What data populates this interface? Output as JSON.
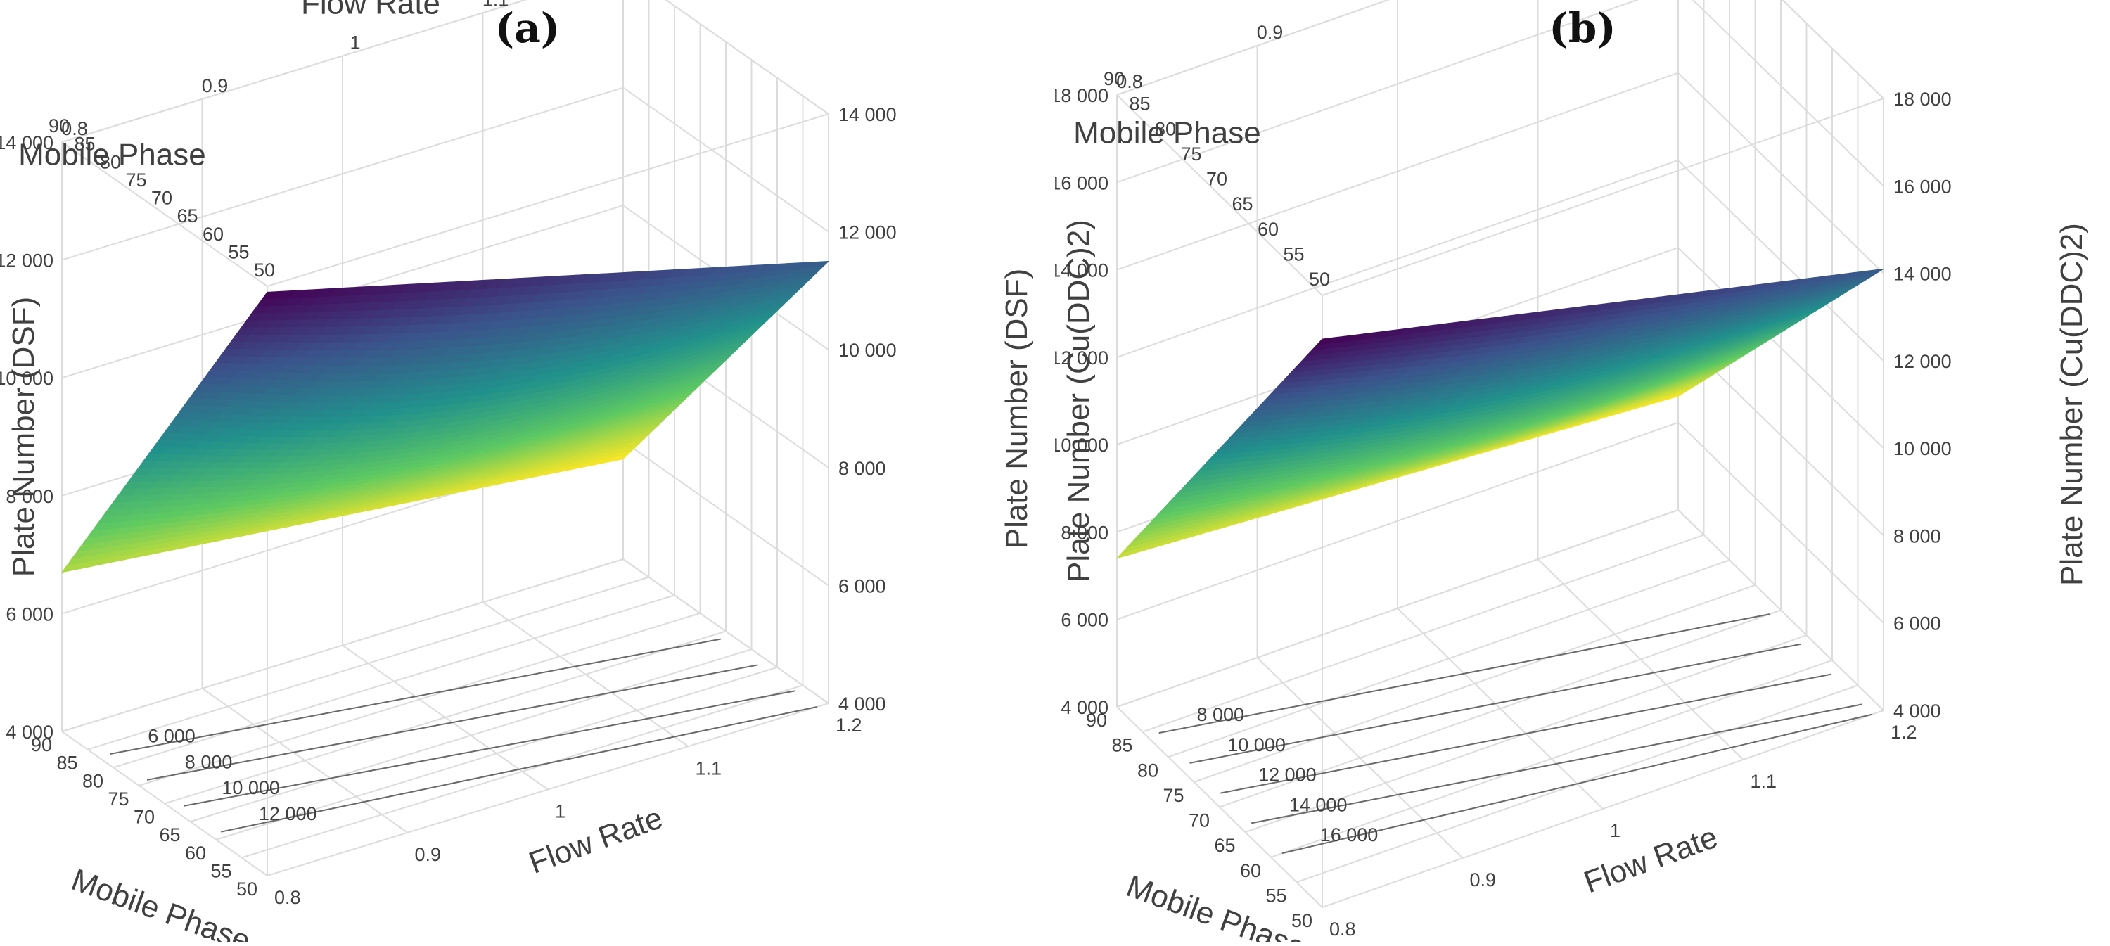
{
  "chart_data": [
    {
      "type": "surface",
      "panel_label": "(a)",
      "z_label": "Plate Number (DSF)",
      "x_label": "Mobile Phase",
      "y_label": "Flow Rate",
      "x_ticks": [
        "90",
        "85",
        "80",
        "75",
        "70",
        "65",
        "60",
        "55",
        "50"
      ],
      "y_ticks": [
        "0.8",
        "0.9",
        "1",
        "1.1",
        "1.2"
      ],
      "z_ticks_left": [
        "4 000",
        "6 000",
        "8 000",
        "10 000",
        "12 000",
        "14 000"
      ],
      "z_ticks_right": [
        "4 000",
        "6 000",
        "8 000",
        "10 000",
        "12 000",
        "14 000"
      ],
      "xlim": [
        50,
        90
      ],
      "ylim": [
        0.8,
        1.2
      ],
      "zlim": [
        4000,
        14000
      ],
      "surface_corners": {
        "mp90_fr0.8": 6700,
        "mp50_fr0.8": 13900,
        "mp50_fr1.2": 11500,
        "mp90_fr1.2": 5700
      },
      "colormap": "viridis-reversed",
      "contour_labels": [
        "6 000",
        "8 000",
        "10 000",
        "12 000"
      ]
    },
    {
      "type": "surface",
      "panel_label": "(b)",
      "z_label": "Plate Number (Cu(DDC)2)",
      "x_label": "Mobile Phase",
      "y_label": "Flow Rate",
      "x_ticks": [
        "90",
        "85",
        "80",
        "75",
        "70",
        "65",
        "60",
        "55",
        "50"
      ],
      "y_ticks": [
        "0.8",
        "0.9",
        "1",
        "1.1",
        "1.2"
      ],
      "z_ticks_left": [
        "4 000",
        "6 000",
        "8 000",
        "10 000",
        "12 000",
        "14 000",
        "16 000",
        "18 000"
      ],
      "z_ticks_right": [
        "4 000",
        "6 000",
        "8 000",
        "10 000",
        "12 000",
        "14 000",
        "16 000",
        "18 000"
      ],
      "xlim": [
        50,
        90
      ],
      "ylim": [
        0.8,
        1.2
      ],
      "zlim": [
        4000,
        18000
      ],
      "surface_corners": {
        "mp90_fr0.8": 7400,
        "mp50_fr0.8": 17000,
        "mp50_fr1.2": 14100,
        "mp90_fr1.2": 6600
      },
      "colormap": "viridis-reversed",
      "contour_labels": [
        "8 000",
        "10 000",
        "12 000",
        "14 000",
        "16 000"
      ]
    }
  ]
}
